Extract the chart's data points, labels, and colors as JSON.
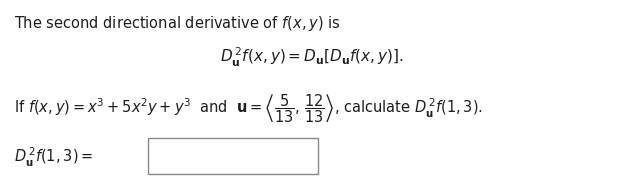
{
  "bg_color": "#ffffff",
  "text_color": "#1e1e1e",
  "title_text": "The second directional derivative of $f(x, y)$ is",
  "equation_center": "$D_{\\mathbf{u}}^{\\,2}f(x, y) = D_{\\mathbf{u}}\\left[D_{\\mathbf{u}}f(x, y)\\right].$",
  "line3_left": "If $f(x, y) = x^3 + 5x^2y + y^3$  and  $\\mathbf{u} = \\left\\langle \\dfrac{5}{13},\\, \\dfrac{12}{13} \\right\\rangle$, calculate $D_{\\mathbf{u}}^{\\,2}f(1, 3)$.",
  "line4_left": "$D_{\\mathbf{u}}^{\\,2}f(1, 3) =$",
  "font_size_title": 10.5,
  "font_size_eq": 11,
  "font_size_line3": 10.5,
  "font_size_line4": 10.5
}
